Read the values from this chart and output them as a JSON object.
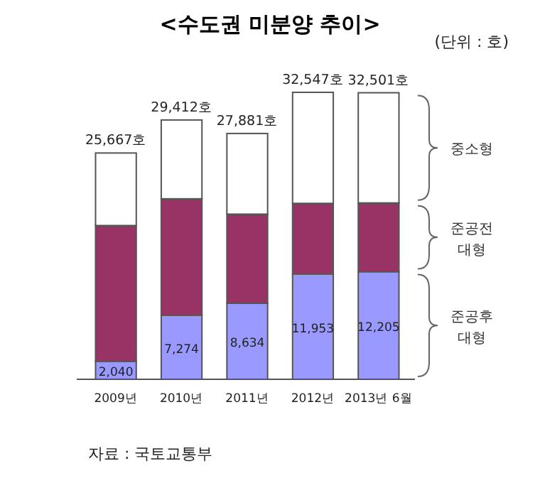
{
  "chart_data": {
    "type": "bar",
    "title": "<수도권 미분양 추이>",
    "stacked": true,
    "categories": [
      "2009년",
      "2010년",
      "2011년",
      "2012년",
      "2013년 6월"
    ],
    "series": [
      {
        "name": "준공후 대형",
        "color": "#9999ff",
        "values": [
          2040,
          7274,
          8634,
          11953,
          12205
        ],
        "value_labels": [
          "2,040",
          "7,274",
          "8,634",
          "11,953",
          "12,205"
        ]
      },
      {
        "name": "준공전 대형",
        "color": "#993366",
        "values": [
          15400,
          13200,
          10100,
          8000,
          7800
        ]
      },
      {
        "name": "중소형",
        "color": "#ffffff",
        "values": [
          8227,
          8938,
          9147,
          12594,
          12496
        ]
      }
    ],
    "totals": [
      "25,667호",
      "29,412호",
      "27,881호",
      "32,547호",
      "32,501호"
    ],
    "annotations": [
      "(단위 : 호)",
      "자료 : 국토교통부"
    ]
  }
}
